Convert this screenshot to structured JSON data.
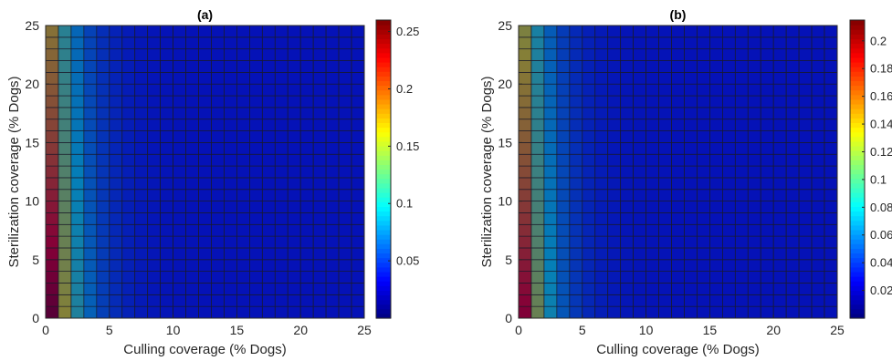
{
  "chart_data": [
    {
      "type": "heatmap",
      "title": "(a)",
      "xlabel": "Culling coverage (% Dogs)",
      "ylabel": "Sterilization coverage (% Dogs)",
      "xlim": [
        0,
        25
      ],
      "ylim": [
        0,
        25
      ],
      "xticks": [
        0,
        5,
        10,
        15,
        20,
        25
      ],
      "yticks": [
        0,
        5,
        10,
        15,
        20,
        25
      ],
      "grid_cells": 25,
      "value_model": {
        "max": 0.25,
        "floor": 0.0415,
        "x_decay_per_percent": 0.55,
        "y_decay_per_percent": 0.02,
        "min_cap": 0.04
      },
      "colorbar": {
        "min": 0,
        "max": 0.26,
        "ticks": [
          0.05,
          0.1,
          0.15,
          0.2,
          0.25
        ],
        "tick_labels": [
          "0.05",
          "0.1",
          "0.15",
          "0.2",
          "0.25"
        ]
      }
    },
    {
      "type": "heatmap",
      "title": "(b)",
      "xlabel": "Culling coverage (% Dogs)",
      "ylabel": "Sterilization coverage (% Dogs)",
      "xlim": [
        0,
        25
      ],
      "ylim": [
        0,
        25
      ],
      "xticks": [
        0,
        5,
        10,
        15,
        20,
        25
      ],
      "yticks": [
        0,
        5,
        10,
        15,
        20,
        25
      ],
      "grid_cells": 25,
      "value_model": {
        "max": 0.19,
        "floor": 0.0345,
        "x_decay_per_percent": 0.57,
        "y_decay_per_percent": 0.02,
        "min_cap": 0.033
      },
      "colorbar": {
        "min": 0,
        "max": 0.215,
        "ticks": [
          0.02,
          0.04,
          0.06,
          0.08,
          0.1,
          0.12,
          0.14,
          0.16,
          0.18,
          0.2
        ],
        "tick_labels": [
          "0.02",
          "0.04",
          "0.06",
          "0.08",
          "0.1",
          "0.12",
          "0.14",
          "0.16",
          "0.18",
          "0.2"
        ]
      }
    }
  ]
}
